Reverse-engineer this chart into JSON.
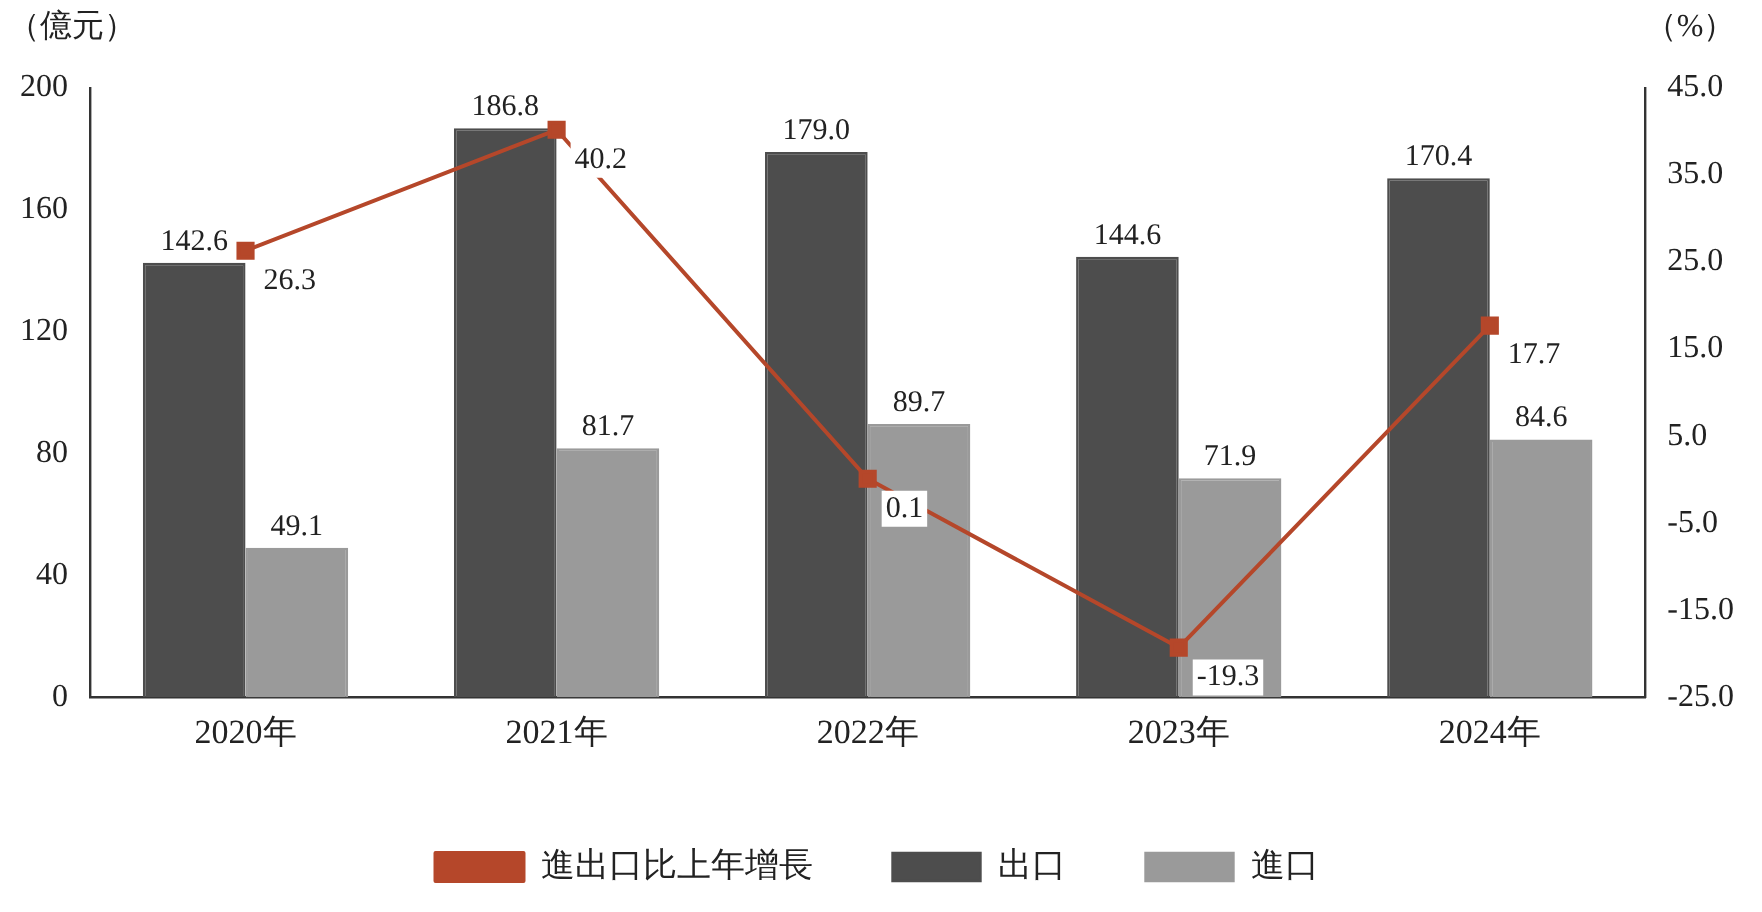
{
  "chart_data": {
    "type": "bar",
    "categories": [
      "2020年",
      "2021年",
      "2022年",
      "2023年",
      "2024年"
    ],
    "ylabel": "（億元）",
    "y2label": "（%）",
    "ylim": [
      0,
      200
    ],
    "yticks": [
      0,
      40,
      80,
      120,
      160,
      200
    ],
    "y2lim": [
      -25,
      45
    ],
    "y2ticks": [
      {
        "value": -25,
        "label": "-25.0"
      },
      {
        "value": -15,
        "label": "-15.0"
      },
      {
        "value": -5,
        "label": "-5.0"
      },
      {
        "value": 5,
        "label": "5.0"
      },
      {
        "value": 15,
        "label": "15.0"
      },
      {
        "value": 25,
        "label": "25.0"
      },
      {
        "value": 35,
        "label": "35.0"
      },
      {
        "value": 45,
        "label": "45.0"
      }
    ],
    "series": [
      {
        "name": "出口",
        "color": "#4d4d4d",
        "values": [
          142.6,
          186.8,
          179.0,
          144.6,
          170.4
        ],
        "value_labels": [
          "142.6",
          "186.8",
          "179.0",
          "144.6",
          "170.4"
        ]
      },
      {
        "name": "進口",
        "color": "#9a9a9a",
        "values": [
          49.1,
          81.7,
          89.7,
          71.9,
          84.6
        ],
        "value_labels": [
          "49.1",
          "81.7",
          "89.7",
          "71.9",
          "84.6"
        ]
      },
      {
        "name": "進出口比上年增長",
        "type": "line",
        "axis": "y2",
        "color": "#b5472a",
        "marker": "square",
        "values": [
          26.3,
          40.2,
          0.1,
          -19.3,
          17.7
        ],
        "value_labels": [
          "26.3",
          "40.2",
          "0.1",
          "-19.3",
          "17.7"
        ]
      }
    ],
    "legend": "bottom",
    "grid": false
  }
}
